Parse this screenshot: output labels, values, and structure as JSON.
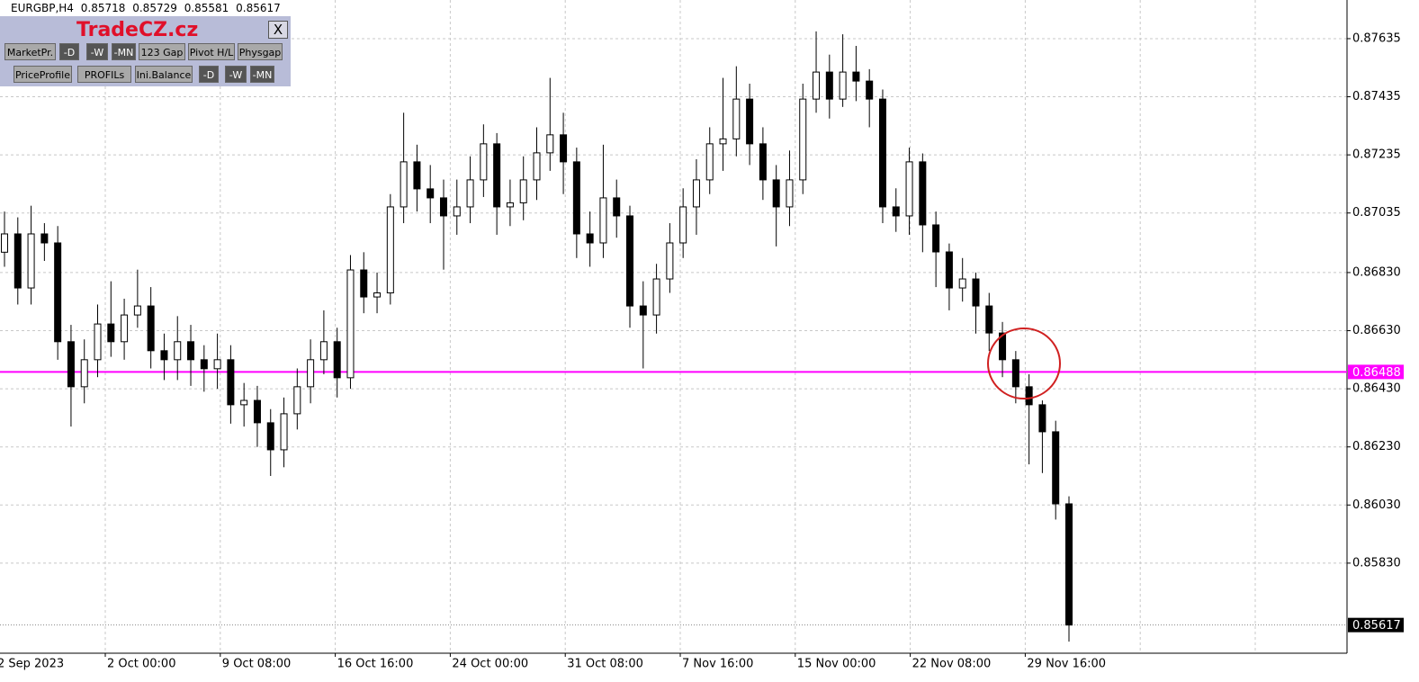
{
  "header": {
    "symbol": "EURGBP,H4",
    "open": 0.85718,
    "high": 0.85729,
    "low": 0.85581,
    "close": 0.85617
  },
  "panel": {
    "title": "TradeCZ.cz",
    "close": "X",
    "row1": [
      "MarketPr.",
      "-D",
      "-W",
      "-MN",
      "123 Gap",
      "Pivot H/L",
      "Physgap"
    ],
    "row2": [
      "PriceProfile",
      "PROFILs",
      "Ini.Balance",
      "-D",
      "-W",
      "-MN"
    ]
  },
  "chart_data": {
    "type": "candlestick",
    "bull_color": "#ffffff",
    "bear_color": "#000000",
    "grid": true,
    "ylim": [
      0.8552,
      0.87768
    ],
    "yticks": [
      0.87635,
      0.87435,
      0.87235,
      0.87035,
      {
        "value": 0.8683,
        "label": "0.86830"
      },
      {
        "value": 0.8663,
        "label": "0.86630"
      },
      {
        "value": 0.8643,
        "label": "0.86430"
      },
      {
        "value": 0.8623,
        "label": "0.86230"
      },
      {
        "value": 0.8603,
        "label": "0.86030"
      },
      {
        "value": 0.8583,
        "label": "0.85830"
      }
    ],
    "xtick_labels": [
      "2 Sep 2023",
      "2 Oct 00:00",
      "9 Oct 08:00",
      "16 Oct 16:00",
      "24 Oct 00:00",
      "31 Oct 08:00",
      "7 Nov 16:00",
      "15 Nov 00:00",
      "22 Nov 08:00",
      "29 Nov 16:00"
    ],
    "hline": {
      "value": 0.86488,
      "color": "#ff00ff"
    },
    "last_price": 0.85617,
    "candles": [
      [
        0.869,
        0.8704,
        0.8685,
        0.86963
      ],
      [
        0.86963,
        0.8702,
        0.8672,
        0.86777
      ],
      [
        0.86777,
        0.8706,
        0.8672,
        0.86963
      ],
      [
        0.86963,
        0.87,
        0.8687,
        0.86932
      ],
      [
        0.86932,
        0.8699,
        0.8653,
        0.86592
      ],
      [
        0.86592,
        0.8665,
        0.863,
        0.86437
      ],
      [
        0.86437,
        0.866,
        0.8638,
        0.8653
      ],
      [
        0.8653,
        0.8672,
        0.8647,
        0.86653
      ],
      [
        0.86653,
        0.868,
        0.8654,
        0.86592
      ],
      [
        0.86592,
        0.8674,
        0.8653,
        0.86684
      ],
      [
        0.86684,
        0.8684,
        0.8664,
        0.86715
      ],
      [
        0.86715,
        0.8678,
        0.865,
        0.86561
      ],
      [
        0.86561,
        0.8662,
        0.8646,
        0.8653
      ],
      [
        0.8653,
        0.8668,
        0.8646,
        0.86592
      ],
      [
        0.86592,
        0.8665,
        0.8644,
        0.8653
      ],
      [
        0.8653,
        0.8658,
        0.8642,
        0.86499
      ],
      [
        0.86499,
        0.8662,
        0.8643,
        0.8653
      ],
      [
        0.8653,
        0.8658,
        0.8631,
        0.86375
      ],
      [
        0.86375,
        0.8645,
        0.863,
        0.8639
      ],
      [
        0.8639,
        0.8644,
        0.8623,
        0.86313
      ],
      [
        0.86313,
        0.8636,
        0.8613,
        0.8622
      ],
      [
        0.8622,
        0.864,
        0.8616,
        0.86344
      ],
      [
        0.86344,
        0.865,
        0.8629,
        0.86437
      ],
      [
        0.86437,
        0.866,
        0.8638,
        0.8653
      ],
      [
        0.8653,
        0.867,
        0.8648,
        0.86592
      ],
      [
        0.86592,
        0.8664,
        0.864,
        0.86468
      ],
      [
        0.86468,
        0.8689,
        0.8643,
        0.86839
      ],
      [
        0.86839,
        0.869,
        0.8669,
        0.86746
      ],
      [
        0.86746,
        0.8683,
        0.8669,
        0.8676
      ],
      [
        0.8676,
        0.871,
        0.8672,
        0.87056
      ],
      [
        0.87056,
        0.8738,
        0.87,
        0.87211
      ],
      [
        0.87211,
        0.8727,
        0.8704,
        0.87118
      ],
      [
        0.87118,
        0.872,
        0.87,
        0.87087
      ],
      [
        0.87087,
        0.8715,
        0.8684,
        0.87025
      ],
      [
        0.87025,
        0.8715,
        0.8696,
        0.87056
      ],
      [
        0.87056,
        0.8723,
        0.87,
        0.87149
      ],
      [
        0.87149,
        0.8734,
        0.8709,
        0.87273
      ],
      [
        0.87273,
        0.8731,
        0.8696,
        0.87056
      ],
      [
        0.87056,
        0.8715,
        0.8699,
        0.8707
      ],
      [
        0.8707,
        0.8723,
        0.8701,
        0.87149
      ],
      [
        0.87149,
        0.8733,
        0.8708,
        0.87242
      ],
      [
        0.87242,
        0.875,
        0.8718,
        0.87304
      ],
      [
        0.87304,
        0.8738,
        0.871,
        0.87211
      ],
      [
        0.87211,
        0.8726,
        0.8688,
        0.86963
      ],
      [
        0.86963,
        0.8704,
        0.8685,
        0.86932
      ],
      [
        0.86932,
        0.8727,
        0.8688,
        0.87087
      ],
      [
        0.87087,
        0.8715,
        0.8695,
        0.87025
      ],
      [
        0.87025,
        0.8706,
        0.8664,
        0.86715
      ],
      [
        0.86715,
        0.868,
        0.865,
        0.86684
      ],
      [
        0.86684,
        0.8686,
        0.8662,
        0.86808
      ],
      [
        0.86808,
        0.87,
        0.8676,
        0.86932
      ],
      [
        0.86932,
        0.8712,
        0.8688,
        0.87056
      ],
      [
        0.87056,
        0.8722,
        0.8696,
        0.87149
      ],
      [
        0.87149,
        0.8733,
        0.871,
        0.87273
      ],
      [
        0.87273,
        0.875,
        0.8718,
        0.8729
      ],
      [
        0.8729,
        0.8754,
        0.8723,
        0.87427
      ],
      [
        0.87427,
        0.8748,
        0.872,
        0.87273
      ],
      [
        0.87273,
        0.8733,
        0.8708,
        0.87149
      ],
      [
        0.87149,
        0.872,
        0.8692,
        0.87056
      ],
      [
        0.87056,
        0.8725,
        0.8699,
        0.87149
      ],
      [
        0.87149,
        0.8748,
        0.871,
        0.87427
      ],
      [
        0.87427,
        0.8766,
        0.8738,
        0.8752
      ],
      [
        0.8752,
        0.8758,
        0.8736,
        0.87427
      ],
      [
        0.87427,
        0.8765,
        0.874,
        0.8752
      ],
      [
        0.8752,
        0.8761,
        0.8742,
        0.87489
      ],
      [
        0.87489,
        0.8753,
        0.8733,
        0.87427
      ],
      [
        0.87427,
        0.8746,
        0.87,
        0.87056
      ],
      [
        0.87056,
        0.8712,
        0.8697,
        0.87025
      ],
      [
        0.87025,
        0.8726,
        0.8696,
        0.87211
      ],
      [
        0.87211,
        0.8724,
        0.869,
        0.86994
      ],
      [
        0.86994,
        0.8704,
        0.8678,
        0.86901
      ],
      [
        0.86901,
        0.8693,
        0.867,
        0.86777
      ],
      [
        0.86777,
        0.8688,
        0.8673,
        0.86808
      ],
      [
        0.86808,
        0.8683,
        0.8662,
        0.86715
      ],
      [
        0.86715,
        0.8676,
        0.8656,
        0.86622
      ],
      [
        0.86622,
        0.8666,
        0.8647,
        0.8653
      ],
      [
        0.8653,
        0.8656,
        0.8638,
        0.86437
      ],
      [
        0.86437,
        0.8648,
        0.8617,
        0.86375
      ],
      [
        0.86375,
        0.8639,
        0.8614,
        0.86282
      ],
      [
        0.86282,
        0.8632,
        0.8598,
        0.86034
      ],
      [
        0.86034,
        0.8606,
        0.8556,
        0.85617
      ]
    ]
  }
}
